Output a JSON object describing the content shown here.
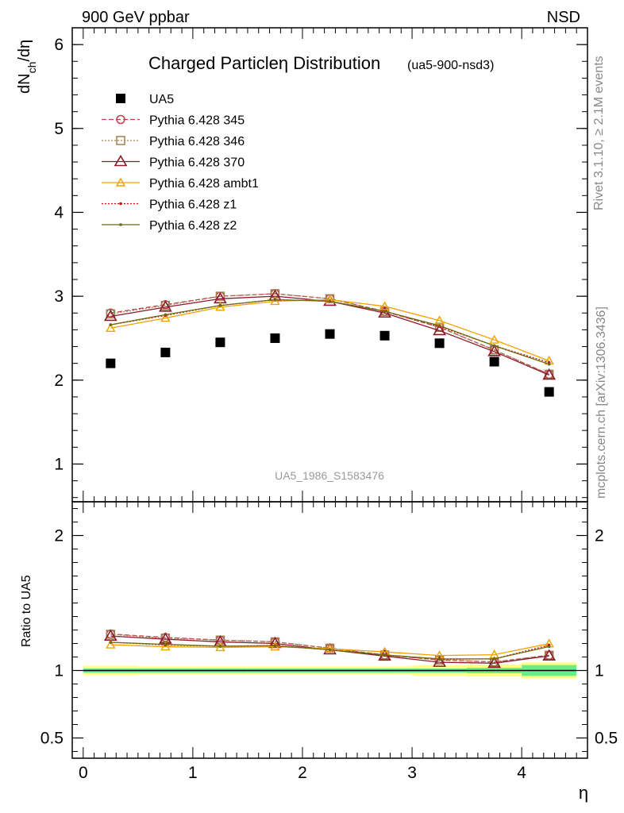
{
  "header": {
    "left": "900 GeV ppbar",
    "right": "NSD"
  },
  "side_labels": {
    "rivet": "Rivet 3.1.10, ≥ 2.1M events",
    "mcplots": "mcplots.cern.ch [arXiv:1306.3436]"
  },
  "chart_data": [
    {
      "type": "scatter",
      "panel": "main",
      "title": "Charged Particleη Distribution",
      "subtitle": "(ua5-900-nsd3)",
      "watermark": "UA5_1986_S1583476",
      "ylabel": "dN_ch/dη",
      "ylabel_parts": {
        "main": "dN",
        "sub": "ch",
        "rest": "/dη"
      },
      "xlim": [
        -0.1,
        4.6
      ],
      "ylim": [
        0.55,
        6.2
      ],
      "yticks": [
        1,
        2,
        3,
        4,
        5,
        6
      ],
      "ytick_labels": [
        "1",
        "2",
        "3",
        "4",
        "5",
        "6"
      ],
      "x": [
        0.25,
        0.75,
        1.25,
        1.75,
        2.25,
        2.75,
        3.25,
        3.75,
        4.25
      ],
      "series": [
        {
          "name": "UA5",
          "color": "#000000",
          "marker": "square",
          "line": "none",
          "values": [
            2.2,
            2.33,
            2.45,
            2.5,
            2.55,
            2.53,
            2.44,
            2.22,
            1.86
          ]
        },
        {
          "name": "Pythia 6.428 345",
          "color": "#c0404f",
          "marker": "circle",
          "line": "dashed",
          "values": [
            2.8,
            2.9,
            3.0,
            3.03,
            2.97,
            2.82,
            2.63,
            2.36,
            2.07
          ]
        },
        {
          "name": "Pythia 6.428 346",
          "color": "#a08050",
          "marker": "square-open",
          "line": "dotted",
          "values": [
            2.79,
            2.89,
            3.0,
            3.03,
            2.97,
            2.82,
            2.63,
            2.36,
            2.07
          ]
        },
        {
          "name": "Pythia 6.428 370",
          "color": "#8b1a2b",
          "marker": "triangle",
          "line": "solid",
          "values": [
            2.76,
            2.87,
            2.97,
            3.0,
            2.94,
            2.8,
            2.59,
            2.34,
            2.06
          ]
        },
        {
          "name": "Pythia 6.428 ambt1",
          "color": "#f0a000",
          "marker": "triangle-small",
          "line": "solid",
          "values": [
            2.62,
            2.74,
            2.87,
            2.94,
            2.96,
            2.88,
            2.71,
            2.48,
            2.23
          ]
        },
        {
          "name": "Pythia 6.428 z1",
          "color": "#cc1111",
          "marker": "dot",
          "line": "dotted",
          "values": [
            2.66,
            2.77,
            2.89,
            2.96,
            2.94,
            2.82,
            2.64,
            2.41,
            2.21
          ]
        },
        {
          "name": "Pythia 6.428 z2",
          "color": "#6b6b10",
          "marker": "dot",
          "line": "solid",
          "values": [
            2.66,
            2.78,
            2.89,
            2.96,
            2.94,
            2.82,
            2.65,
            2.41,
            2.19
          ]
        }
      ]
    },
    {
      "type": "line",
      "panel": "ratio",
      "ylabel": "Ratio to UA5",
      "xlabel": "η",
      "xlim": [
        -0.1,
        4.6
      ],
      "ylim": [
        0.35,
        2.25
      ],
      "xticks": [
        0,
        1,
        2,
        3,
        4
      ],
      "xtick_labels": [
        "0",
        "1",
        "2",
        "3",
        "4"
      ],
      "yticks": [
        0.5,
        1,
        2
      ],
      "ytick_labels": [
        "0.5",
        "1",
        "2"
      ],
      "x": [
        0.25,
        0.75,
        1.25,
        1.75,
        2.25,
        2.75,
        3.25,
        3.75,
        4.25
      ],
      "bands": {
        "stat": [
          0.015,
          0.015,
          0.015,
          0.015,
          0.015,
          0.015,
          0.015,
          0.02,
          0.04
        ],
        "total": [
          0.035,
          0.03,
          0.03,
          0.03,
          0.03,
          0.03,
          0.04,
          0.045,
          0.06
        ],
        "stat_color": "#66ee88",
        "total_color": "#ffff88"
      },
      "series": [
        {
          "name": "Pythia 6.428 345",
          "color": "#c0404f",
          "marker": "circle",
          "line": "dashed",
          "values": [
            1.27,
            1.245,
            1.225,
            1.212,
            1.165,
            1.115,
            1.078,
            1.063,
            1.113
          ]
        },
        {
          "name": "Pythia 6.428 346",
          "color": "#a08050",
          "marker": "square-open",
          "line": "dotted",
          "values": [
            1.268,
            1.24,
            1.225,
            1.212,
            1.165,
            1.115,
            1.078,
            1.063,
            1.113
          ]
        },
        {
          "name": "Pythia 6.428 370",
          "color": "#8b1a2b",
          "marker": "triangle",
          "line": "solid",
          "values": [
            1.255,
            1.232,
            1.212,
            1.2,
            1.153,
            1.107,
            1.061,
            1.054,
            1.108
          ]
        },
        {
          "name": "Pythia 6.428 ambt1",
          "color": "#f0a000",
          "marker": "triangle-small",
          "line": "solid",
          "values": [
            1.191,
            1.176,
            1.171,
            1.176,
            1.161,
            1.138,
            1.111,
            1.117,
            1.199
          ]
        },
        {
          "name": "Pythia 6.428 z1",
          "color": "#cc1111",
          "marker": "dot",
          "line": "dotted",
          "values": [
            1.209,
            1.189,
            1.18,
            1.184,
            1.153,
            1.115,
            1.082,
            1.086,
            1.188
          ]
        },
        {
          "name": "Pythia 6.428 z2",
          "color": "#6b6b10",
          "marker": "dot",
          "line": "solid",
          "values": [
            1.209,
            1.193,
            1.18,
            1.184,
            1.153,
            1.115,
            1.086,
            1.086,
            1.177
          ]
        }
      ]
    }
  ]
}
